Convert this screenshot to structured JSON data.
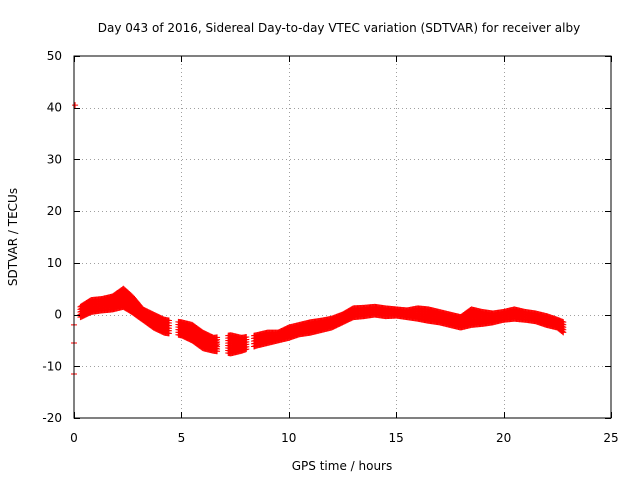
{
  "chart_data": {
    "type": "scatter",
    "title": "Day 043 of 2016, Sidereal Day-to-day VTEC variation (SDTVAR) for receiver alby",
    "xlabel": "GPS time / hours",
    "ylabel": "SDTVAR / TECUs",
    "xlim": [
      0,
      25
    ],
    "ylim": [
      -20,
      50
    ],
    "xticks": [
      0,
      5,
      10,
      15,
      20,
      25
    ],
    "yticks": [
      -20,
      -10,
      0,
      10,
      20,
      30,
      40,
      50
    ],
    "xtick_labels": [
      "0",
      "5",
      "10",
      "15",
      "20",
      "25"
    ],
    "ytick_labels": [
      "-20",
      "-10",
      "0",
      "10",
      "20",
      "30",
      "40",
      "50"
    ],
    "grid": true,
    "marker": "+",
    "series": [
      {
        "name": "SDTVAR",
        "color": "#ff0000",
        "band": [
          {
            "x": 0.3,
            "upper": 1.5,
            "lower": -0.5
          },
          {
            "x": 0.8,
            "upper": 2.8,
            "lower": 0.5
          },
          {
            "x": 1.3,
            "upper": 3.0,
            "lower": 0.8
          },
          {
            "x": 1.8,
            "upper": 3.5,
            "lower": 1.0
          },
          {
            "x": 2.3,
            "upper": 5.0,
            "lower": 1.5
          },
          {
            "x": 2.7,
            "upper": 3.5,
            "lower": 0.5
          },
          {
            "x": 3.2,
            "upper": 1.0,
            "lower": -1.0
          },
          {
            "x": 3.7,
            "upper": 0.0,
            "lower": -2.5
          },
          {
            "x": 4.2,
            "upper": -1.0,
            "lower": -3.5
          },
          {
            "x": 5.0,
            "upper": -1.5,
            "lower": -4.0
          },
          {
            "x": 5.5,
            "upper": -2.0,
            "lower": -5.0
          },
          {
            "x": 6.0,
            "upper": -3.5,
            "lower": -6.5
          },
          {
            "x": 6.5,
            "upper": -4.5,
            "lower": -7.0
          },
          {
            "x": 7.3,
            "upper": -4.0,
            "lower": -7.5
          },
          {
            "x": 7.8,
            "upper": -4.5,
            "lower": -7.0
          },
          {
            "x": 8.5,
            "upper": -4.0,
            "lower": -6.0
          },
          {
            "x": 9.0,
            "upper": -3.5,
            "lower": -5.5
          },
          {
            "x": 9.5,
            "upper": -3.5,
            "lower": -5.0
          },
          {
            "x": 10.0,
            "upper": -2.5,
            "lower": -4.5
          },
          {
            "x": 10.5,
            "upper": -2.0,
            "lower": -3.8
          },
          {
            "x": 11.0,
            "upper": -1.5,
            "lower": -3.5
          },
          {
            "x": 11.5,
            "upper": -1.2,
            "lower": -3.0
          },
          {
            "x": 12.0,
            "upper": -0.8,
            "lower": -2.5
          },
          {
            "x": 12.5,
            "upper": 0.0,
            "lower": -1.5
          },
          {
            "x": 13.0,
            "upper": 1.2,
            "lower": -0.5
          },
          {
            "x": 13.5,
            "upper": 1.3,
            "lower": -0.3
          },
          {
            "x": 14.0,
            "upper": 1.5,
            "lower": 0.0
          },
          {
            "x": 14.5,
            "upper": 1.2,
            "lower": -0.3
          },
          {
            "x": 15.0,
            "upper": 1.0,
            "lower": -0.2
          },
          {
            "x": 15.5,
            "upper": 0.8,
            "lower": -0.5
          },
          {
            "x": 16.0,
            "upper": 1.2,
            "lower": -0.8
          },
          {
            "x": 16.5,
            "upper": 1.0,
            "lower": -1.2
          },
          {
            "x": 17.0,
            "upper": 0.5,
            "lower": -1.5
          },
          {
            "x": 17.5,
            "upper": 0.0,
            "lower": -2.0
          },
          {
            "x": 18.0,
            "upper": -0.5,
            "lower": -2.5
          },
          {
            "x": 18.5,
            "upper": 1.0,
            "lower": -2.0
          },
          {
            "x": 19.0,
            "upper": 0.5,
            "lower": -1.8
          },
          {
            "x": 19.5,
            "upper": 0.2,
            "lower": -1.5
          },
          {
            "x": 20.0,
            "upper": 0.5,
            "lower": -1.0
          },
          {
            "x": 20.5,
            "upper": 1.0,
            "lower": -0.8
          },
          {
            "x": 21.0,
            "upper": 0.5,
            "lower": -1.0
          },
          {
            "x": 21.5,
            "upper": 0.2,
            "lower": -1.3
          },
          {
            "x": 22.0,
            "upper": -0.3,
            "lower": -2.0
          },
          {
            "x": 22.5,
            "upper": -1.0,
            "lower": -2.5
          },
          {
            "x": 22.8,
            "upper": -1.5,
            "lower": -3.5
          }
        ],
        "outliers": [
          {
            "x": 0.05,
            "y": 40.5
          },
          {
            "x": 0.0,
            "y": -2.0
          },
          {
            "x": 0.0,
            "y": -5.5
          },
          {
            "x": 0.0,
            "y": -11.5
          }
        ]
      }
    ]
  }
}
